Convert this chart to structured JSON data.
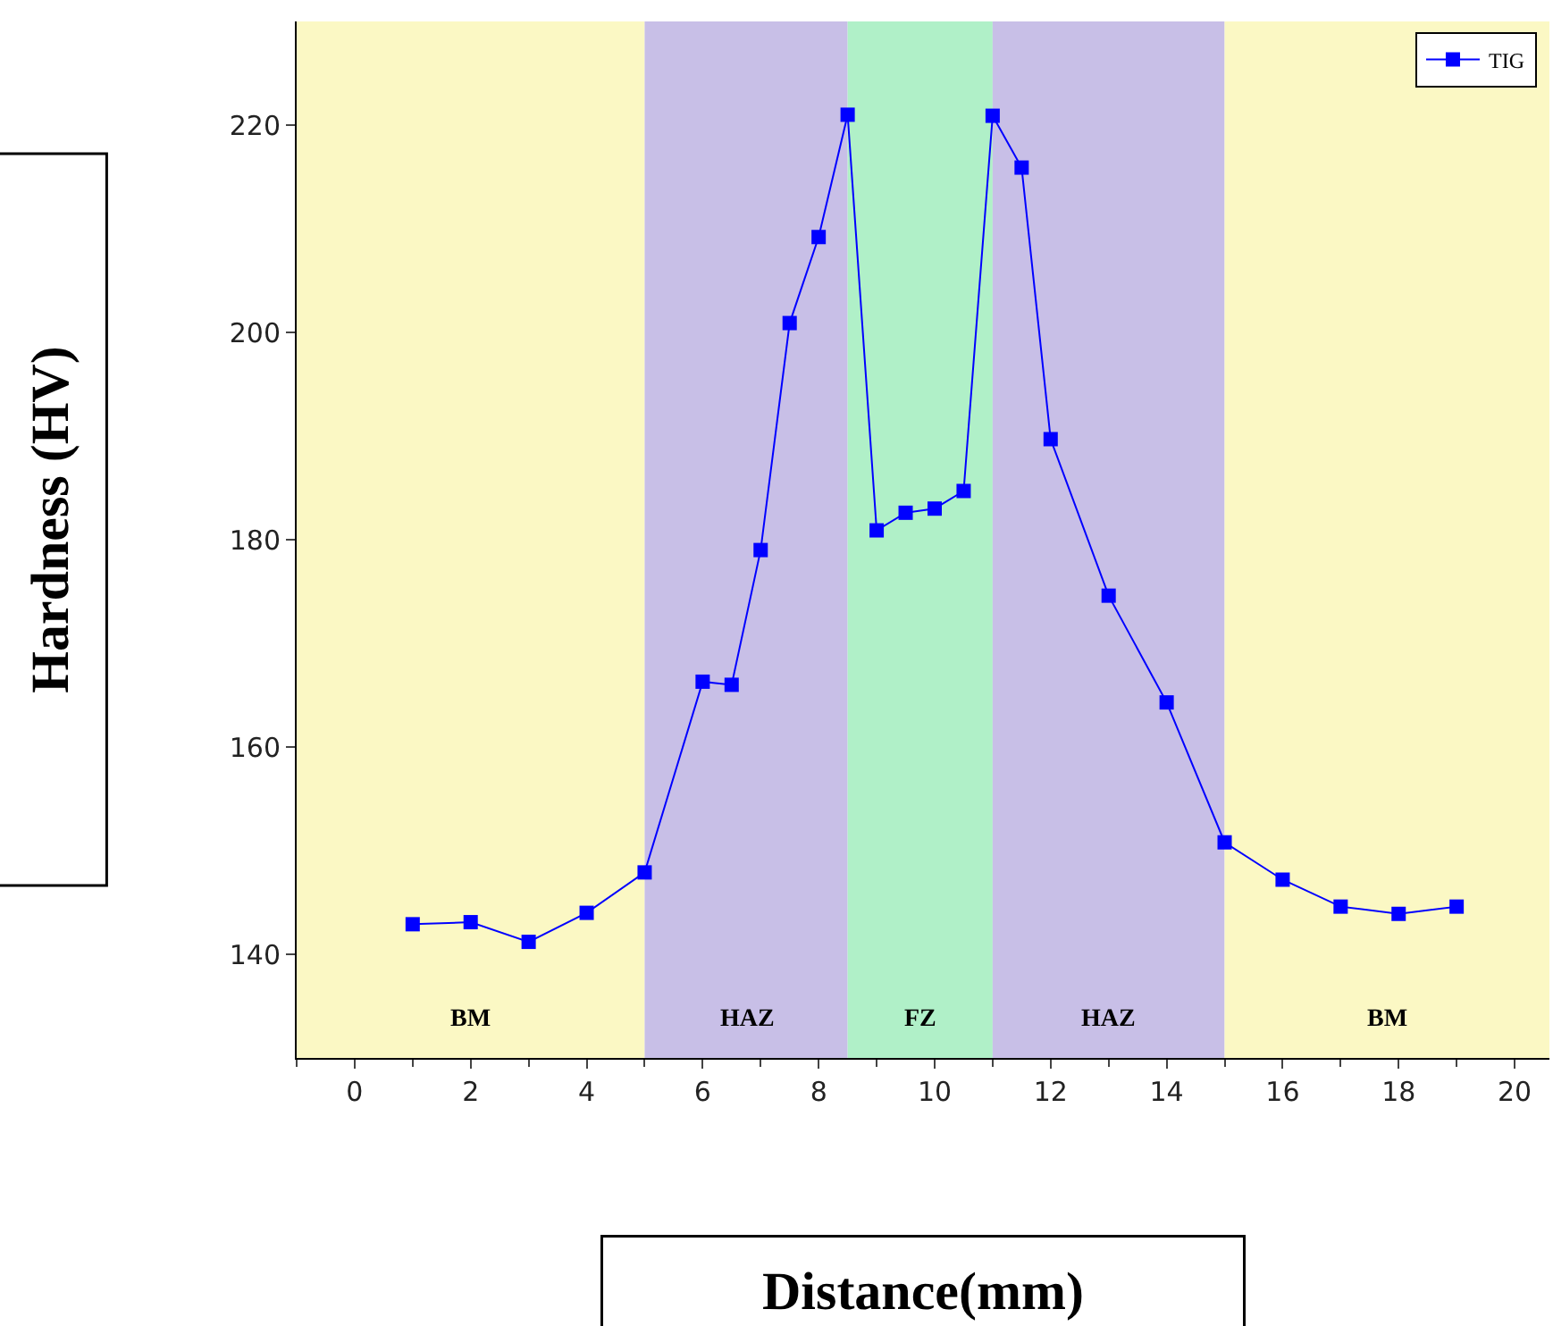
{
  "chart_data": {
    "type": "line",
    "xlabel": "Distance(mm)",
    "ylabel": "Hardness (HV)",
    "x": [
      1,
      2,
      3,
      4,
      5,
      6,
      6.5,
      7,
      7.5,
      8,
      8.5,
      9,
      9.5,
      10,
      10.5,
      11,
      11.5,
      12,
      13,
      14,
      15,
      16,
      17,
      18,
      19
    ],
    "series": [
      {
        "name": "TIG",
        "color": "#0000ff",
        "values": [
          142.9,
          143.1,
          141.2,
          144,
          147.9,
          166.3,
          166,
          179,
          200.9,
          209.2,
          221,
          180.9,
          182.6,
          183,
          184.7,
          220.9,
          215.9,
          189.7,
          174.6,
          164.3,
          150.8,
          147.2,
          144.6,
          143.9,
          144.6
        ]
      }
    ],
    "bands": [
      {
        "axis": "x",
        "from": -1,
        "to": 5,
        "label": "BM",
        "color": "#fbf8c4"
      },
      {
        "axis": "x",
        "from": 5,
        "to": 8.5,
        "label": "HAZ",
        "color": "#c8bfe7"
      },
      {
        "axis": "x",
        "from": 8.5,
        "to": 11,
        "label": "FZ",
        "color": "#b0f0c8"
      },
      {
        "axis": "x",
        "from": 11,
        "to": 15,
        "label": "HAZ",
        "color": "#c8bfe7"
      },
      {
        "axis": "x",
        "from": 15,
        "to": 20.6,
        "label": "BM",
        "color": "#fbf8c4"
      }
    ],
    "xlim": [
      -1,
      20.6
    ],
    "ylim": [
      130,
      230
    ],
    "xticks": [
      0,
      2,
      4,
      6,
      8,
      10,
      12,
      14,
      16,
      18,
      20
    ],
    "yticks": [
      140,
      160,
      180,
      200,
      220
    ],
    "legend": "top right",
    "marker": "square",
    "line_style": "solid"
  }
}
